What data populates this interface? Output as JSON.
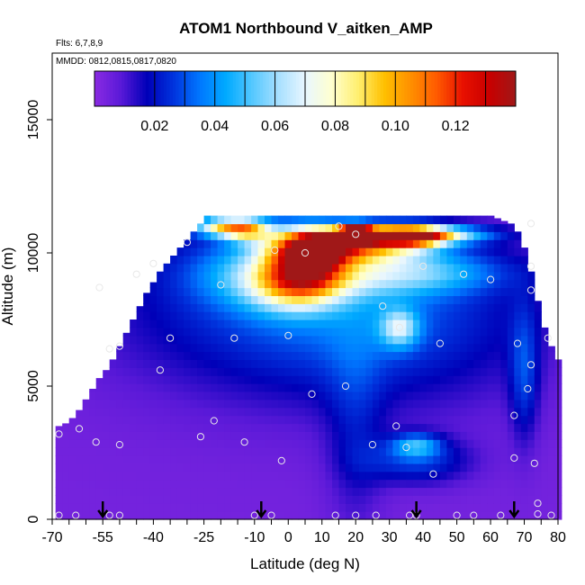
{
  "chart_data": {
    "type": "heatmap",
    "title": "ATOM1 Northbound V_aitken_AMP",
    "flights_label": "Flts: 6,7,8,9",
    "dates_label": "MMDD: 0812,0815,0817,0820",
    "xlabel": "Latitude (deg N)",
    "ylabel": "Altitude (m)",
    "xlim": [
      -70,
      80
    ],
    "ylim": [
      0,
      17500
    ],
    "x_ticks": [
      -70,
      -55,
      -40,
      -25,
      -10,
      0,
      10,
      20,
      30,
      40,
      50,
      60,
      70,
      80
    ],
    "x_tick_labels": [
      "-70",
      "-55",
      "-40",
      "-25",
      "-10",
      "0",
      "10",
      "20",
      "30",
      "40",
      "50",
      "60",
      "70",
      "80"
    ],
    "x_minor_ticks": [
      -65,
      -60,
      -50,
      -45,
      -35,
      -30,
      -20,
      -15,
      -5,
      5,
      15,
      25,
      35,
      45,
      55,
      65,
      75
    ],
    "y_ticks": [
      0,
      5000,
      10000,
      15000
    ],
    "y_tick_labels": [
      "0",
      "5000",
      "10000",
      "15000"
    ],
    "colorbar": {
      "range": [
        0,
        0.14
      ],
      "ticks": [
        0.02,
        0.04,
        0.06,
        0.08,
        0.1,
        0.12
      ],
      "tick_labels": [
        "0.02",
        "0.04",
        "0.06",
        "0.08",
        "0.10",
        "0.12"
      ],
      "colors": [
        "#8a2be2",
        "#5a19d8",
        "#0000b8",
        "#0033dd",
        "#0077ff",
        "#00aaff",
        "#55c8ff",
        "#a8e0ff",
        "#e8f6ff",
        "#ffffd0",
        "#ffef70",
        "#ffc000",
        "#ff9000",
        "#ff5a00",
        "#e81000",
        "#c80000",
        "#a01818"
      ]
    },
    "grid": false,
    "column_extent": [
      [
        -68,
        3500
      ],
      [
        -66,
        3600
      ],
      [
        -64,
        3800
      ],
      [
        -62,
        4100
      ],
      [
        -60,
        4500
      ],
      [
        -58,
        4900
      ],
      [
        -56,
        5300
      ],
      [
        -54,
        5600
      ],
      [
        -52,
        6000
      ],
      [
        -50,
        6500
      ],
      [
        -48,
        7000
      ],
      [
        -46,
        7500
      ],
      [
        -44,
        8000
      ],
      [
        -42,
        8500
      ],
      [
        -40,
        8900
      ],
      [
        -38,
        9300
      ],
      [
        -36,
        9600
      ],
      [
        -34,
        9900
      ],
      [
        -32,
        10200
      ],
      [
        -30,
        10500
      ],
      [
        -28,
        10800
      ],
      [
        -26,
        11100
      ],
      [
        -24,
        11400
      ],
      [
        60,
        11400
      ],
      [
        62,
        11300
      ],
      [
        64,
        11200
      ],
      [
        66,
        11100
      ],
      [
        68,
        10800
      ],
      [
        70,
        10200
      ],
      [
        72,
        9300
      ],
      [
        74,
        8200
      ],
      [
        76,
        7200
      ],
      [
        78,
        6500
      ],
      [
        80,
        6000
      ]
    ],
    "blobs": [
      {
        "lat": -5,
        "alt": 8200,
        "sx": 38,
        "sy": 2400,
        "v": 0.018
      },
      {
        "lat": 30,
        "alt": 7600,
        "sx": 32,
        "sy": 2300,
        "v": 0.018
      },
      {
        "lat": 38,
        "alt": 2200,
        "sx": 11,
        "sy": 600,
        "v": 0.022
      },
      {
        "lat": 38,
        "alt": 2800,
        "sx": 5,
        "sy": 300,
        "v": 0.032
      },
      {
        "lat": 70,
        "alt": 5500,
        "sx": 3,
        "sy": 1800,
        "v": 0.02
      },
      {
        "lat": 20,
        "alt": 3500,
        "sx": 6,
        "sy": 2800,
        "v": 0.012
      },
      {
        "lat": -10,
        "alt": 9300,
        "sx": 14,
        "sy": 900,
        "v": 0.02
      },
      {
        "lat": 0,
        "alt": 8700,
        "sx": 10,
        "sy": 700,
        "v": 0.028
      },
      {
        "lat": 20,
        "alt": 9200,
        "sx": 22,
        "sy": 600,
        "v": 0.03
      },
      {
        "lat": 5,
        "alt": 9600,
        "sx": 8,
        "sy": 900,
        "v": 0.07
      },
      {
        "lat": 18,
        "alt": 10300,
        "sx": 15,
        "sy": 450,
        "v": 0.08
      },
      {
        "lat": 33,
        "alt": 10700,
        "sx": 15,
        "sy": 230,
        "v": 0.1
      },
      {
        "lat": 20,
        "alt": 10700,
        "sx": 3,
        "sy": 220,
        "v": 0.14
      },
      {
        "lat": 38,
        "alt": 10600,
        "sx": 6,
        "sy": 300,
        "v": 0.04
      },
      {
        "lat": -20,
        "alt": 11000,
        "sx": 6,
        "sy": 250,
        "v": 0.06
      },
      {
        "lat": -12,
        "alt": 10900,
        "sx": 5,
        "sy": 300,
        "v": 0.06
      },
      {
        "lat": 8,
        "alt": 10000,
        "sx": 5,
        "sy": 400,
        "v": 0.05
      },
      {
        "lat": 33,
        "alt": 7200,
        "sx": 4,
        "sy": 500,
        "v": 0.04
      },
      {
        "lat": 45,
        "alt": 9300,
        "sx": 15,
        "sy": 500,
        "v": 0.015
      }
    ],
    "observations": [
      [
        -68,
        3200
      ],
      [
        -68,
        150
      ],
      [
        -63,
        150
      ],
      [
        -62,
        3400
      ],
      [
        -57,
        2900
      ],
      [
        -53,
        150
      ],
      [
        -50,
        150
      ],
      [
        -50,
        2800
      ],
      [
        -53,
        6400
      ],
      [
        -50,
        6500
      ],
      [
        -56,
        8700
      ],
      [
        -45,
        9200
      ],
      [
        -40,
        9600
      ],
      [
        -38,
        5600
      ],
      [
        -35,
        6800
      ],
      [
        -30,
        10400
      ],
      [
        -26,
        3100
      ],
      [
        -22,
        3700
      ],
      [
        -20,
        8800
      ],
      [
        -16,
        6800
      ],
      [
        -13,
        2900
      ],
      [
        -10,
        150
      ],
      [
        -5,
        150
      ],
      [
        0,
        6900
      ],
      [
        -4,
        10100
      ],
      [
        -2,
        2200
      ],
      [
        5,
        10000
      ],
      [
        7,
        4700
      ],
      [
        14,
        150
      ],
      [
        15,
        11000
      ],
      [
        17,
        5000
      ],
      [
        20,
        150
      ],
      [
        20,
        10700
      ],
      [
        25,
        2800
      ],
      [
        26,
        150
      ],
      [
        28,
        8000
      ],
      [
        32,
        3500
      ],
      [
        33,
        7200
      ],
      [
        35,
        2700
      ],
      [
        36,
        150
      ],
      [
        38,
        150
      ],
      [
        40,
        9500
      ],
      [
        43,
        1700
      ],
      [
        45,
        6600
      ],
      [
        50,
        150
      ],
      [
        52,
        9200
      ],
      [
        55,
        150
      ],
      [
        60,
        9000
      ],
      [
        63,
        150
      ],
      [
        67,
        3900
      ],
      [
        67,
        2300
      ],
      [
        68,
        6600
      ],
      [
        71,
        4900
      ],
      [
        72,
        5800
      ],
      [
        72,
        8600
      ],
      [
        72,
        9500
      ],
      [
        73,
        2100
      ],
      [
        74,
        600
      ],
      [
        74,
        200
      ],
      [
        77,
        6800
      ],
      [
        78,
        150
      ],
      [
        72,
        11100
      ]
    ],
    "flight_dates_arrow_lat": [
      -55,
      -8,
      38,
      67
    ]
  }
}
